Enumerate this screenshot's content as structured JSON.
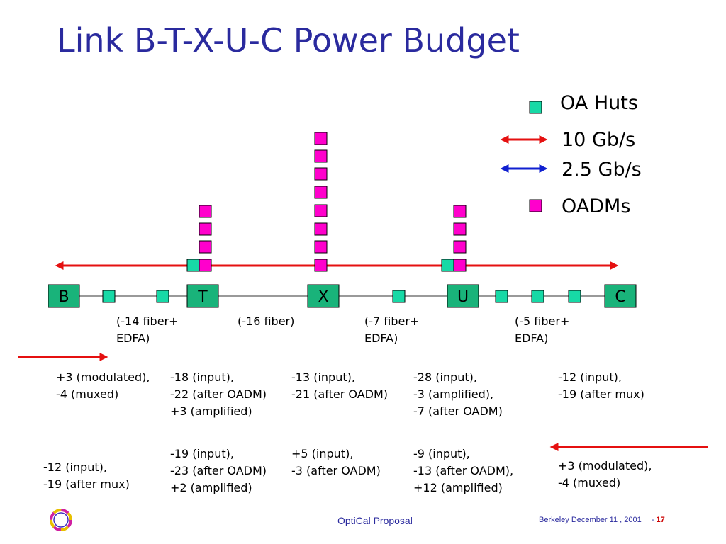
{
  "title": "Link B-T-X-U-C Power Budget",
  "legend": {
    "oa_huts": "OA Huts",
    "rate_10g": "10 Gb/s",
    "rate_2_5g": "2.5 Gb/s",
    "oadms": "OADMs"
  },
  "nodes": [
    "B",
    "T",
    "X",
    "U",
    "C"
  ],
  "spans": [
    "(-14 fiber+\nEDFA)",
    "(-16 fiber)",
    "(-7 fiber+\nEDFA)",
    "(-5 fiber+\nEDFA)"
  ],
  "forward": [
    "+3 (modulated),\n-4 (muxed)",
    "-18 (input),\n-22 (after OADM)\n+3 (amplified)",
    "-13 (input),\n-21 (after OADM)",
    "-28 (input),\n-3 (amplified),\n-7 (after OADM)",
    "-12 (input),\n-19 (after mux)"
  ],
  "reverse": [
    "-12 (input),\n-19 (after mux)",
    "-19 (input),\n-23 (after OADM)\n+2 (amplified)",
    "+5 (input),\n-3 (after OADM)",
    "-9 (input),\n-13 (after OADM),\n+12 (amplified)",
    "+3 (modulated),\n-4 (muxed)"
  ],
  "footer": {
    "center": "OptiCal Proposal",
    "date": "Berkeley December 11 , 2001",
    "page_prefix": "-",
    "page": "17"
  },
  "colors": {
    "title": "#2a2a9e",
    "oa_hut": "#17d9a6",
    "oadm": "#ff00cc",
    "red_arrow": "#e51010",
    "blue_arrow": "#1020d0",
    "node_fill": "#19b37a"
  }
}
